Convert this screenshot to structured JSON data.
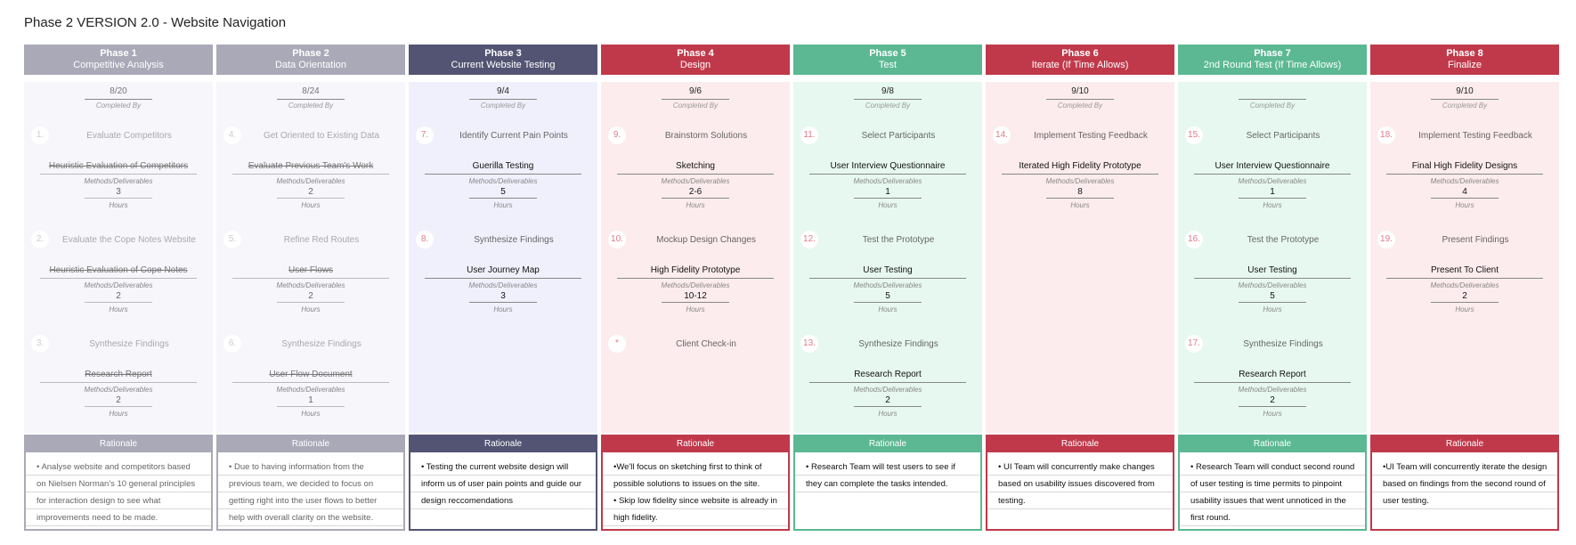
{
  "title": "Phase 2 VERSION 2.0 - Website Navigation",
  "labels": {
    "completed_by": "Completed By",
    "methods": "Methods/Deliverables",
    "hours": "Hours",
    "rationale": "Rationale"
  },
  "phases": [
    {
      "name": "Phase 1",
      "subtitle": "Competitive Analysis",
      "date": "8/20",
      "head_color": "#a9a9b8",
      "body_color": "#f6f6fb",
      "faded": true,
      "tasks": [
        {
          "num": "1.",
          "name": "Evaluate Competitors",
          "method": "Heuristic Evaluation of Competitors",
          "hours": "3"
        },
        {
          "num": "2.",
          "name": "Evaluate the Cope Notes Website",
          "method": "Heuristic Evaluation of Cope Notes",
          "hours": "2"
        },
        {
          "num": "3.",
          "name": "Synthesize Findings",
          "method": "Research Report",
          "hours": "2"
        }
      ],
      "rationale": "• Analyse website and competitors based on Nielsen Norman's 10 general principles for interaction design to see what improvements need to be made."
    },
    {
      "name": "Phase 2",
      "subtitle": "Data Orientation",
      "date": "8/24",
      "head_color": "#a9a9b8",
      "body_color": "#f6f6fb",
      "faded": true,
      "tasks": [
        {
          "num": "4.",
          "name": "Get Oriented to Existing Data",
          "method": "Evaluate Previous Team's Work",
          "hours": "2"
        },
        {
          "num": "5.",
          "name": "Refine Red Routes",
          "method": "User Flows",
          "hours": "2"
        },
        {
          "num": "6.",
          "name": "Synthesize Findings",
          "method": "User Flow Document",
          "hours": "1"
        }
      ],
      "rationale": "• Due to having information from the previous team, we decided to focus on getting right into the user flows to better help with overall clarity on the website."
    },
    {
      "name": "Phase 3",
      "subtitle": "Current Website Testing",
      "date": "9/4",
      "head_color": "#535473",
      "body_color": "#f0f0fd",
      "faded": false,
      "tasks": [
        {
          "num": "7.",
          "name": "Identify Current Pain Points",
          "method": "Guerilla Testing",
          "hours": "5"
        },
        {
          "num": "8.",
          "name": "Synthesize Findings",
          "method": "User Journey Map",
          "hours": "3"
        }
      ],
      "rationale": "• Testing the current website design will inform us of user pain points and guide our design reccomendations"
    },
    {
      "name": "Phase 4",
      "subtitle": "Design",
      "date": "9/6",
      "head_color": "#c0394a",
      "body_color": "#fdeced",
      "faded": false,
      "tasks": [
        {
          "num": "9.",
          "name": "Brainstorm Solutions",
          "method": "Sketching",
          "hours": "2-6"
        },
        {
          "num": "10.",
          "name": "Mockup Design Changes",
          "method": "High Fidelity Prototype",
          "hours": "10-12"
        },
        {
          "num": "*",
          "name": "Client Check-in",
          "method": "",
          "hours": ""
        }
      ],
      "rationale": "•We'll focus on sketching first to think of possible solutions to issues on the site.\n• Skip low fidelity since website is already in high fidelity."
    },
    {
      "name": "Phase 5",
      "subtitle": "Test",
      "date": "9/8",
      "head_color": "#5bb893",
      "body_color": "#e7f8f0",
      "faded": false,
      "tasks": [
        {
          "num": "11.",
          "name": "Select Participants",
          "method": "User Interview Questionnaire",
          "hours": "1"
        },
        {
          "num": "12.",
          "name": "Test the Prototype",
          "method": "User Testing",
          "hours": "5"
        },
        {
          "num": "13.",
          "name": "Synthesize Findings",
          "method": "Research Report",
          "hours": "2"
        }
      ],
      "rationale": "• Research Team will test users to see if they can complete the tasks intended."
    },
    {
      "name": "Phase 6",
      "subtitle": "Iterate (If Time Allows)",
      "date": "9/10",
      "head_color": "#c0394a",
      "body_color": "#fdeced",
      "faded": false,
      "tasks": [
        {
          "num": "14.",
          "name": "Implement Testing Feedback",
          "method": "Iterated High Fidelity Prototype",
          "hours": "8"
        }
      ],
      "rationale": "• UI Team will concurrently make changes based on usability issues discovered from testing."
    },
    {
      "name": "Phase 7",
      "subtitle": "2nd Round Test (If Time Allows)",
      "date": "",
      "head_color": "#5bb893",
      "body_color": "#e7f8f0",
      "faded": false,
      "tasks": [
        {
          "num": "15.",
          "name": "Select Participants",
          "method": "User Interview Questionnaire",
          "hours": "1"
        },
        {
          "num": "16.",
          "name": "Test the Prototype",
          "method": "User Testing",
          "hours": "5"
        },
        {
          "num": "17.",
          "name": "Synthesize Findings",
          "method": "Research Report",
          "hours": "2"
        }
      ],
      "rationale": "•  Research Team will conduct second round of user testing is time permits to pinpoint usability issues that went unnoticed in the first round."
    },
    {
      "name": "Phase 8",
      "subtitle": "Finalize",
      "date": "9/10",
      "head_color": "#c0394a",
      "body_color": "#fdeced",
      "faded": false,
      "tasks": [
        {
          "num": "18.",
          "name": "Implement Testing Feedback",
          "method": "Final High Fidelity Designs",
          "hours": "4"
        },
        {
          "num": "19.",
          "name": "Present Findings",
          "method": "Present To Client",
          "hours": "2"
        }
      ],
      "rationale": "•UI Team will concurrently iterate the design based on findings from the second round of user testing."
    }
  ]
}
